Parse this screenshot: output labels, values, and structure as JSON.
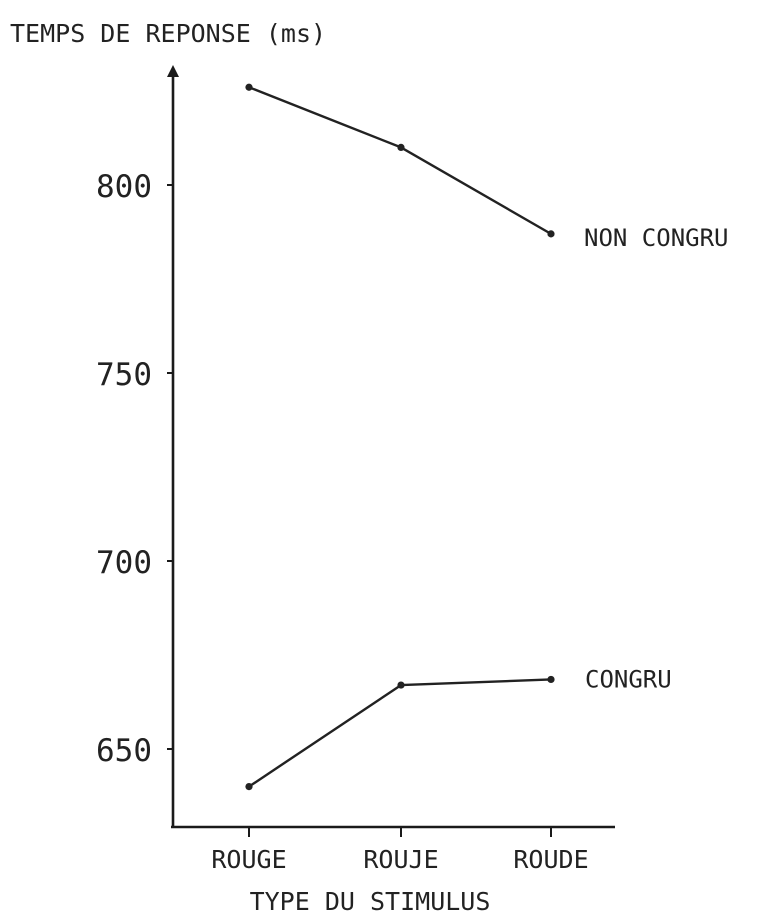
{
  "chart_data": {
    "type": "line",
    "ylabel": "TEMPS DE REPONSE (ms)",
    "xlabel": "TYPE DU STIMULUS",
    "categories": [
      "ROUGE",
      "ROUJE",
      "ROUDE"
    ],
    "series": [
      {
        "name": "NON CONGRU",
        "values": [
          826,
          810,
          787
        ]
      },
      {
        "name": "CONGRU",
        "values": [
          640,
          667,
          668.5
        ]
      }
    ],
    "yticks": [
      650,
      700,
      750,
      800
    ],
    "ytick_labels": [
      "650",
      "700",
      "750",
      "800"
    ],
    "ylim": [
      621,
      852
    ],
    "grid": false,
    "legend": "inline labels at right end of each line",
    "colors": {
      "ink": "#222222",
      "axis": "#1a1a1a"
    }
  }
}
